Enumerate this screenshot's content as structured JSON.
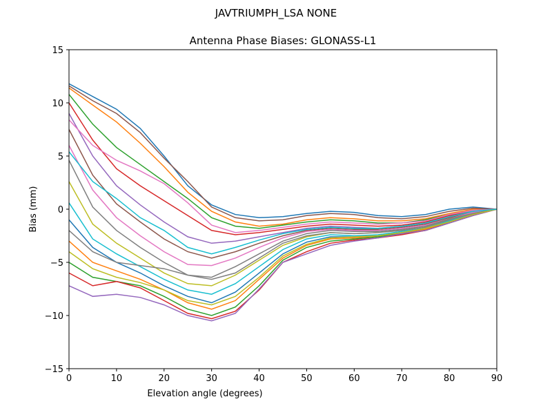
{
  "chart_data": {
    "type": "line",
    "suptitle": "JAVTRIUMPH_LSA  NONE",
    "title": "Antenna Phase Biases: GLONASS-L1",
    "xlabel": "Elevation angle (degrees)",
    "ylabel": "Bias (mm)",
    "xlim": [
      0,
      90
    ],
    "ylim": [
      -15,
      15
    ],
    "xticks": [
      "0",
      "10",
      "20",
      "30",
      "40",
      "50",
      "60",
      "70",
      "80",
      "90"
    ],
    "yticks": [
      "−15",
      "−10",
      "−5",
      "0",
      "5",
      "10",
      "15"
    ],
    "grid": false,
    "legend": "none",
    "colors": [
      "#1f77b4",
      "#ff7f0e",
      "#2ca02c",
      "#d62728",
      "#9467bd",
      "#8c564b",
      "#e377c2",
      "#7f7f7f",
      "#bcbd22",
      "#17becf"
    ],
    "x": [
      0,
      5,
      10,
      15,
      20,
      25,
      30,
      35,
      40,
      45,
      50,
      55,
      60,
      65,
      70,
      75,
      80,
      85,
      90
    ],
    "series": [
      {
        "values": [
          11.8,
          10.6,
          9.4,
          7.6,
          5.0,
          2.2,
          0.4,
          -0.5,
          -0.8,
          -0.7,
          -0.4,
          -0.2,
          -0.3,
          -0.6,
          -0.7,
          -0.5,
          0.0,
          0.2,
          0
        ]
      },
      {
        "values": [
          11.4,
          9.8,
          8.2,
          6.2,
          4.0,
          1.6,
          -0.2,
          -1.2,
          -1.6,
          -1.4,
          -1.0,
          -0.8,
          -0.9,
          -1.1,
          -1.1,
          -0.9,
          -0.4,
          0.0,
          0
        ]
      },
      {
        "values": [
          10.8,
          8.0,
          5.8,
          4.2,
          2.6,
          1.0,
          -0.8,
          -1.6,
          -1.8,
          -1.5,
          -1.2,
          -1.0,
          -1.1,
          -1.3,
          -1.3,
          -1.0,
          -0.5,
          -0.1,
          0
        ]
      },
      {
        "values": [
          10.0,
          6.5,
          3.8,
          2.2,
          0.8,
          -0.6,
          -2.0,
          -2.4,
          -2.2,
          -1.9,
          -1.6,
          -1.4,
          -1.5,
          -1.6,
          -1.5,
          -1.2,
          -0.6,
          -0.2,
          0
        ]
      },
      {
        "values": [
          9.0,
          5.0,
          2.2,
          0.4,
          -1.2,
          -2.6,
          -3.2,
          -3.0,
          -2.6,
          -2.2,
          -1.8,
          -1.6,
          -1.7,
          -1.8,
          -1.6,
          -1.3,
          -0.7,
          -0.2,
          0
        ]
      },
      {
        "values": [
          7.5,
          3.2,
          0.5,
          -1.2,
          -2.8,
          -4.0,
          -4.6,
          -4.0,
          -3.2,
          -2.5,
          -2.0,
          -1.8,
          -1.9,
          -1.9,
          -1.7,
          -1.4,
          -0.8,
          -0.3,
          0
        ]
      },
      {
        "values": [
          6.0,
          1.8,
          -0.8,
          -2.5,
          -4.0,
          -5.2,
          -5.3,
          -4.6,
          -3.6,
          -2.7,
          -2.1,
          -1.9,
          -2.0,
          -2.0,
          -1.8,
          -1.5,
          -0.9,
          -0.3,
          0
        ]
      },
      {
        "values": [
          4.6,
          0.2,
          -2.0,
          -3.6,
          -5.0,
          -6.2,
          -6.4,
          -5.4,
          -4.2,
          -3.0,
          -2.3,
          -2.0,
          -2.1,
          -2.1,
          -1.9,
          -1.6,
          -0.9,
          -0.4,
          0
        ]
      },
      {
        "values": [
          2.6,
          -1.4,
          -3.2,
          -4.6,
          -6.0,
          -7.0,
          -7.2,
          -6.2,
          -4.8,
          -3.4,
          -2.6,
          -2.2,
          -2.3,
          -2.2,
          -2.0,
          -1.7,
          -1.0,
          -0.4,
          0
        ]
      },
      {
        "values": [
          0.6,
          -2.8,
          -4.2,
          -5.4,
          -6.6,
          -7.6,
          -8.0,
          -7.0,
          -5.4,
          -3.8,
          -2.8,
          -2.4,
          -2.5,
          -2.4,
          -2.1,
          -1.8,
          -1.1,
          -0.5,
          0
        ]
      },
      {
        "values": [
          -1.0,
          -3.6,
          -5.0,
          -6.0,
          -7.2,
          -8.2,
          -8.8,
          -7.8,
          -6.0,
          -4.2,
          -3.1,
          -2.6,
          -2.6,
          -2.5,
          -2.2,
          -1.9,
          -1.2,
          -0.5,
          0
        ]
      },
      {
        "values": [
          -3.0,
          -5.0,
          -5.8,
          -6.6,
          -7.6,
          -8.8,
          -9.4,
          -8.6,
          -6.6,
          -4.6,
          -3.4,
          -2.8,
          -2.7,
          -2.6,
          -2.3,
          -1.9,
          -1.2,
          -0.5,
          0
        ]
      },
      {
        "values": [
          -5.0,
          -6.4,
          -6.8,
          -7.2,
          -8.2,
          -9.4,
          -10.0,
          -9.2,
          -7.2,
          -4.8,
          -3.6,
          -3.0,
          -2.8,
          -2.6,
          -2.3,
          -2.0,
          -1.3,
          -0.6,
          0
        ]
      },
      {
        "values": [
          -6.0,
          -7.2,
          -6.8,
          -7.4,
          -8.6,
          -9.8,
          -10.3,
          -9.6,
          -7.6,
          -5.0,
          -4.0,
          -3.2,
          -2.9,
          -2.7,
          -2.4,
          -2.0,
          -1.3,
          -0.6,
          0
        ]
      },
      {
        "values": [
          -7.2,
          -8.2,
          -8.0,
          -8.3,
          -9.0,
          -10.0,
          -10.5,
          -9.8,
          -7.5,
          -5.0,
          -4.2,
          -3.4,
          -3.0,
          -2.7,
          -2.3,
          -2.0,
          -1.3,
          -0.6,
          0
        ]
      },
      {
        "values": [
          11.6,
          10.2,
          9.0,
          7.2,
          4.8,
          2.6,
          0.2,
          -0.8,
          -1.1,
          -1.0,
          -0.6,
          -0.4,
          -0.5,
          -0.8,
          -0.9,
          -0.7,
          -0.2,
          0.1,
          0
        ]
      },
      {
        "values": [
          8.4,
          6.0,
          4.6,
          3.6,
          2.4,
          0.6,
          -1.5,
          -2.2,
          -2.0,
          -1.7,
          -1.4,
          -1.2,
          -1.3,
          -1.4,
          -1.3,
          -1.1,
          -0.5,
          -0.1,
          0
        ]
      },
      {
        "values": [
          -2.0,
          -4.0,
          -5.0,
          -5.3,
          -5.6,
          -6.2,
          -6.6,
          -6.0,
          -4.6,
          -3.2,
          -2.5,
          -2.2,
          -2.3,
          -2.2,
          -2.0,
          -1.7,
          -1.0,
          -0.4,
          0
        ]
      },
      {
        "values": [
          -4.0,
          -5.6,
          -6.4,
          -6.9,
          -7.6,
          -8.6,
          -9.0,
          -8.2,
          -6.4,
          -4.4,
          -3.3,
          -2.7,
          -2.6,
          -2.5,
          -2.2,
          -1.8,
          -1.2,
          -0.5,
          0
        ]
      },
      {
        "values": [
          5.4,
          2.6,
          1.0,
          -0.8,
          -2.0,
          -3.6,
          -4.2,
          -3.6,
          -2.9,
          -2.3,
          -1.9,
          -1.7,
          -1.8,
          -1.8,
          -1.6,
          -1.3,
          -0.7,
          -0.2,
          0
        ]
      }
    ]
  }
}
